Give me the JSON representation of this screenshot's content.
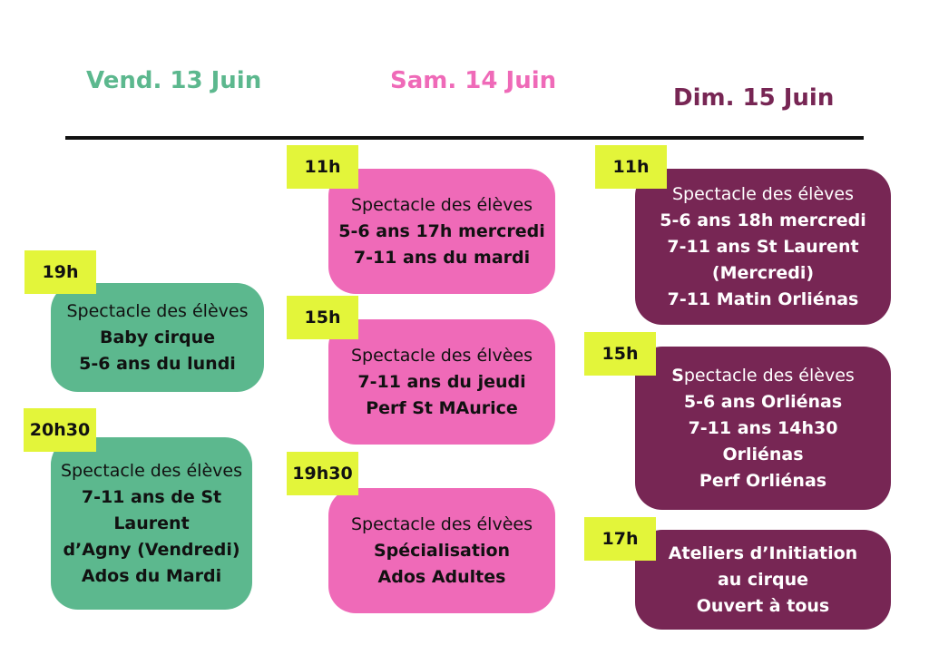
{
  "days": {
    "fri": {
      "label": "Vend. 13 Juin",
      "color": "#5cb88e"
    },
    "sat": {
      "label": "Sam. 14 Juin",
      "color": "#ef6ab8"
    },
    "sun": {
      "label": "Dim. 15 Juin",
      "color": "#772654"
    }
  },
  "events": {
    "fri_19h": {
      "time": "19h",
      "title": "Spectacle des élèves",
      "lines": [
        "Baby cirque",
        "5-6 ans du lundi"
      ]
    },
    "fri_20h30": {
      "time": "20h30",
      "title": "Spectacle des élèves",
      "lines": [
        "7-11 ans de St",
        "Laurent",
        "d’Agny (Vendredi)",
        "Ados du Mardi"
      ]
    },
    "sat_11h": {
      "time": "11h",
      "title": "Spectacle des élèves",
      "lines": [
        "5-6 ans 17h mercredi",
        "7-11 ans du mardi"
      ]
    },
    "sat_15h": {
      "time": "15h",
      "title": "Spectacle des élvèes",
      "lines": [
        "7-11 ans du jeudi",
        "Perf St MAurice"
      ]
    },
    "sat_19h30": {
      "time": "19h30",
      "title": "Spectacle des élvèes",
      "lines": [
        "Spécialisation",
        "Ados Adultes"
      ]
    },
    "sun_11h": {
      "time": "11h",
      "title": "Spectacle des élèves",
      "lines": [
        "5-6 ans 18h mercredi",
        "7-11 ans St Laurent",
        "(Mercredi)",
        "7-11 Matin Orliénas"
      ]
    },
    "sun_15h": {
      "time": "15h",
      "title_first": "S",
      "title_rest": "pectacle des élèves",
      "lines": [
        "5-6 ans Orliénas",
        "7-11 ans 14h30",
        "Orliénas",
        "Perf Orliénas"
      ]
    },
    "sun_17h": {
      "time": "17h",
      "lines": [
        "Ateliers d’Initiation",
        "au cirque",
        "Ouvert à tous"
      ]
    }
  }
}
